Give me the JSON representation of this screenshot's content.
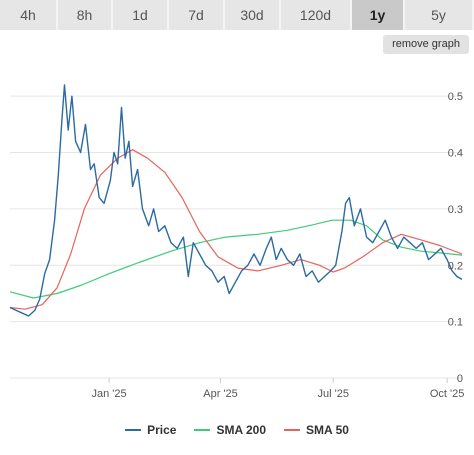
{
  "tabs": [
    {
      "label": "4h",
      "active": false
    },
    {
      "label": "8h",
      "active": false
    },
    {
      "label": "1d",
      "active": false
    },
    {
      "label": "7d",
      "active": false
    },
    {
      "label": "30d",
      "active": false
    },
    {
      "label": "120d",
      "active": false
    },
    {
      "label": "1y",
      "active": true
    },
    {
      "label": "5y",
      "active": false
    }
  ],
  "remove_graph_label": "remove graph",
  "chart_data": {
    "type": "line",
    "x_range": [
      "2024-10-13",
      "2025-10-13"
    ],
    "x_ticks": [
      {
        "label": "Jan '25",
        "date": "2025-01-01"
      },
      {
        "label": "Apr '25",
        "date": "2025-04-01"
      },
      {
        "label": "Jul '25",
        "date": "2025-07-01"
      },
      {
        "label": "Oct '25",
        "date": "2025-10-01"
      }
    ],
    "y_ticks": [
      0,
      0.1,
      0.2,
      0.3,
      0.4,
      0.5
    ],
    "y_tick_labels": [
      "0",
      "0.1",
      "0.2",
      "0.3",
      "0.4",
      "0.5"
    ],
    "ylim": [
      0,
      0.55
    ],
    "grid": "horizontal",
    "legend_position": "bottom",
    "series": [
      {
        "name": "Price",
        "color": "#2b6aa3",
        "points": [
          [
            "2024-10-13",
            0.125
          ],
          [
            "2024-10-18",
            0.12
          ],
          [
            "2024-10-23",
            0.115
          ],
          [
            "2024-10-28",
            0.11
          ],
          [
            "2024-11-02",
            0.12
          ],
          [
            "2024-11-06",
            0.14
          ],
          [
            "2024-11-10",
            0.185
          ],
          [
            "2024-11-14",
            0.21
          ],
          [
            "2024-11-18",
            0.28
          ],
          [
            "2024-11-21",
            0.36
          ],
          [
            "2024-11-24",
            0.46
          ],
          [
            "2024-11-26",
            0.52
          ],
          [
            "2024-11-29",
            0.44
          ],
          [
            "2024-12-02",
            0.5
          ],
          [
            "2024-12-05",
            0.42
          ],
          [
            "2024-12-09",
            0.4
          ],
          [
            "2024-12-13",
            0.45
          ],
          [
            "2024-12-17",
            0.37
          ],
          [
            "2024-12-20",
            0.38
          ],
          [
            "2024-12-24",
            0.32
          ],
          [
            "2024-12-28",
            0.31
          ],
          [
            "2025-01-02",
            0.35
          ],
          [
            "2025-01-05",
            0.4
          ],
          [
            "2025-01-08",
            0.38
          ],
          [
            "2025-01-11",
            0.48
          ],
          [
            "2025-01-14",
            0.39
          ],
          [
            "2025-01-17",
            0.42
          ],
          [
            "2025-01-20",
            0.34
          ],
          [
            "2025-01-24",
            0.37
          ],
          [
            "2025-01-28",
            0.3
          ],
          [
            "2025-02-02",
            0.27
          ],
          [
            "2025-02-06",
            0.3
          ],
          [
            "2025-02-10",
            0.26
          ],
          [
            "2025-02-15",
            0.27
          ],
          [
            "2025-02-20",
            0.24
          ],
          [
            "2025-02-25",
            0.23
          ],
          [
            "2025-03-02",
            0.25
          ],
          [
            "2025-03-06",
            0.18
          ],
          [
            "2025-03-10",
            0.24
          ],
          [
            "2025-03-15",
            0.22
          ],
          [
            "2025-03-20",
            0.2
          ],
          [
            "2025-03-25",
            0.19
          ],
          [
            "2025-03-30",
            0.17
          ],
          [
            "2025-04-04",
            0.18
          ],
          [
            "2025-04-08",
            0.15
          ],
          [
            "2025-04-13",
            0.17
          ],
          [
            "2025-04-18",
            0.19
          ],
          [
            "2025-04-23",
            0.2
          ],
          [
            "2025-04-28",
            0.22
          ],
          [
            "2025-05-03",
            0.2
          ],
          [
            "2025-05-08",
            0.23
          ],
          [
            "2025-05-12",
            0.25
          ],
          [
            "2025-05-16",
            0.21
          ],
          [
            "2025-05-20",
            0.23
          ],
          [
            "2025-05-25",
            0.21
          ],
          [
            "2025-05-30",
            0.2
          ],
          [
            "2025-06-04",
            0.22
          ],
          [
            "2025-06-09",
            0.18
          ],
          [
            "2025-06-14",
            0.19
          ],
          [
            "2025-06-19",
            0.17
          ],
          [
            "2025-06-24",
            0.18
          ],
          [
            "2025-06-29",
            0.19
          ],
          [
            "2025-07-03",
            0.2
          ],
          [
            "2025-07-08",
            0.26
          ],
          [
            "2025-07-11",
            0.31
          ],
          [
            "2025-07-14",
            0.32
          ],
          [
            "2025-07-18",
            0.27
          ],
          [
            "2025-07-23",
            0.3
          ],
          [
            "2025-07-28",
            0.25
          ],
          [
            "2025-08-02",
            0.24
          ],
          [
            "2025-08-07",
            0.26
          ],
          [
            "2025-08-12",
            0.28
          ],
          [
            "2025-08-17",
            0.25
          ],
          [
            "2025-08-22",
            0.23
          ],
          [
            "2025-08-27",
            0.25
          ],
          [
            "2025-09-01",
            0.24
          ],
          [
            "2025-09-06",
            0.23
          ],
          [
            "2025-09-11",
            0.24
          ],
          [
            "2025-09-16",
            0.21
          ],
          [
            "2025-09-21",
            0.22
          ],
          [
            "2025-09-26",
            0.23
          ],
          [
            "2025-10-01",
            0.21
          ],
          [
            "2025-10-05",
            0.19
          ],
          [
            "2025-10-09",
            0.18
          ],
          [
            "2025-10-13",
            0.175
          ]
        ]
      },
      {
        "name": "SMA 200",
        "color": "#3fcc7a",
        "points": [
          [
            "2024-10-13",
            0.153
          ],
          [
            "2024-11-01",
            0.142
          ],
          [
            "2024-11-20",
            0.15
          ],
          [
            "2024-12-10",
            0.165
          ],
          [
            "2025-01-01",
            0.185
          ],
          [
            "2025-01-25",
            0.205
          ],
          [
            "2025-02-20",
            0.225
          ],
          [
            "2025-03-15",
            0.24
          ],
          [
            "2025-04-05",
            0.25
          ],
          [
            "2025-05-01",
            0.255
          ],
          [
            "2025-05-25",
            0.262
          ],
          [
            "2025-06-15",
            0.272
          ],
          [
            "2025-06-30",
            0.28
          ],
          [
            "2025-07-15",
            0.28
          ],
          [
            "2025-07-28",
            0.27
          ],
          [
            "2025-08-10",
            0.245
          ],
          [
            "2025-08-25",
            0.232
          ],
          [
            "2025-09-10",
            0.225
          ],
          [
            "2025-09-25",
            0.222
          ],
          [
            "2025-10-13",
            0.218
          ]
        ]
      },
      {
        "name": "SMA 50",
        "color": "#e8625a",
        "points": [
          [
            "2024-10-13",
            0.125
          ],
          [
            "2024-10-25",
            0.122
          ],
          [
            "2024-11-08",
            0.13
          ],
          [
            "2024-11-20",
            0.16
          ],
          [
            "2024-12-01",
            0.22
          ],
          [
            "2024-12-12",
            0.3
          ],
          [
            "2024-12-25",
            0.36
          ],
          [
            "2025-01-08",
            0.39
          ],
          [
            "2025-01-20",
            0.405
          ],
          [
            "2025-02-01",
            0.39
          ],
          [
            "2025-02-15",
            0.365
          ],
          [
            "2025-03-01",
            0.32
          ],
          [
            "2025-03-15",
            0.26
          ],
          [
            "2025-03-30",
            0.215
          ],
          [
            "2025-04-15",
            0.195
          ],
          [
            "2025-05-01",
            0.19
          ],
          [
            "2025-05-20",
            0.2
          ],
          [
            "2025-06-05",
            0.21
          ],
          [
            "2025-06-20",
            0.2
          ],
          [
            "2025-07-01",
            0.188
          ],
          [
            "2025-07-10",
            0.195
          ],
          [
            "2025-07-25",
            0.215
          ],
          [
            "2025-08-10",
            0.24
          ],
          [
            "2025-08-25",
            0.255
          ],
          [
            "2025-09-10",
            0.245
          ],
          [
            "2025-09-25",
            0.235
          ],
          [
            "2025-10-13",
            0.22
          ]
        ]
      }
    ]
  }
}
